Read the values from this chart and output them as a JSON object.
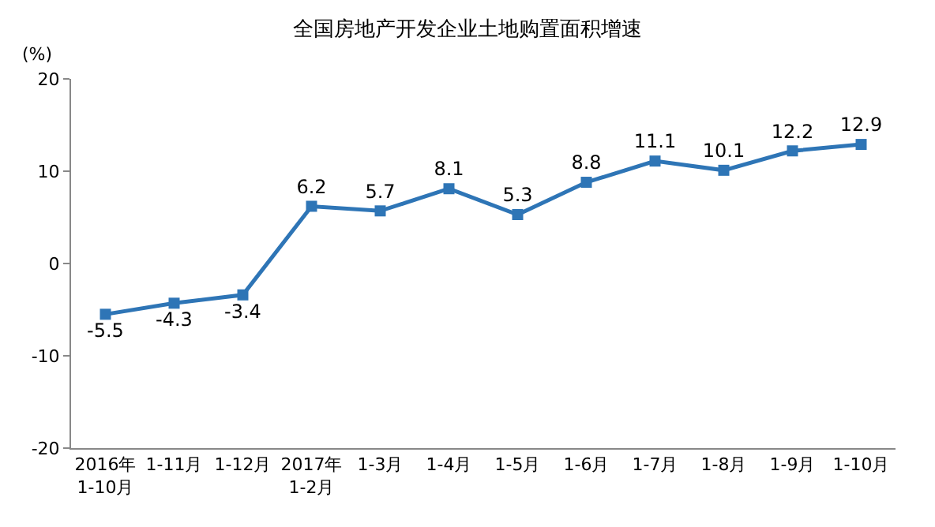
{
  "chart_data": {
    "type": "line",
    "title": "全国房地产开发企业土地购置面积增速",
    "ylabel": "(%)",
    "categories": [
      "2016年\n1-10月",
      "1-11月",
      "1-12月",
      "2017年\n1-2月",
      "1-3月",
      "1-4月",
      "1-5月",
      "1-6月",
      "1-7月",
      "1-8月",
      "1-9月",
      "1-10月"
    ],
    "series": [
      {
        "color": "#2e75b6",
        "values": [
          -5.5,
          -4.3,
          -3.4,
          6.2,
          5.7,
          8.1,
          5.3,
          8.8,
          11.1,
          10.1,
          12.2,
          12.9
        ]
      }
    ],
    "ylim": [
      -20,
      20
    ],
    "yticks": [
      -20,
      -10,
      0,
      10,
      20
    ],
    "legend": false,
    "marker": "square",
    "line_style": "solid",
    "data_labels": true
  }
}
